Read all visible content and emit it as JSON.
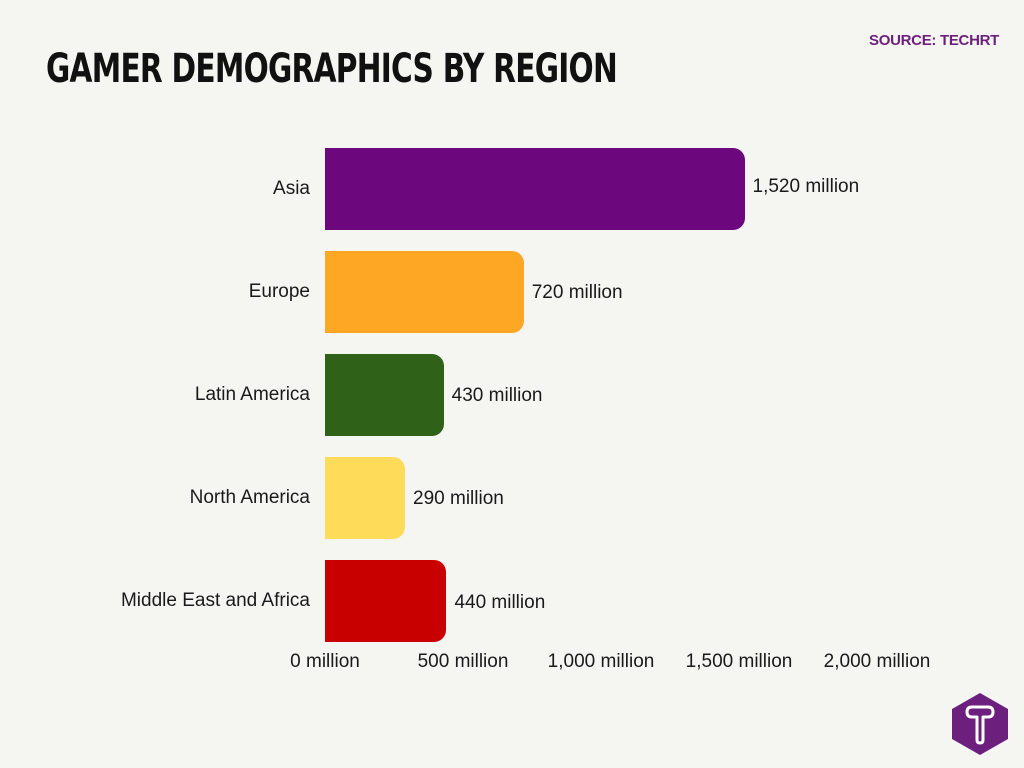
{
  "header": {
    "title": "GAMER DEMOGRAPHICS BY REGION",
    "source": "SOURCE: TECHRT"
  },
  "logo": {
    "icon": "techrt-hexagon-t-logo",
    "color": "#6d1f7e"
  },
  "chart_data": {
    "type": "bar",
    "orientation": "horizontal",
    "title": "Gamer Demographics by Region",
    "xlabel": "",
    "ylabel": "",
    "unit": "million",
    "categories": [
      "Asia",
      "Europe",
      "Latin America",
      "North America",
      "Middle East and Africa"
    ],
    "values": [
      1520,
      720,
      430,
      290,
      440
    ],
    "value_labels": [
      "1,520 million",
      "720 million",
      "430 million",
      "290 million",
      "440 million"
    ],
    "colors": [
      "#6c077e",
      "#fea725",
      "#2f6119",
      "#fedb58",
      "#c90000"
    ],
    "xlim": [
      0,
      2000
    ],
    "xticks": [
      0,
      500,
      1000,
      1500,
      2000
    ],
    "xtick_labels": [
      "0 million",
      "500 million",
      "1,000 million",
      "1,500 million",
      "2,000 million"
    ],
    "grid": false,
    "legend": null
  }
}
